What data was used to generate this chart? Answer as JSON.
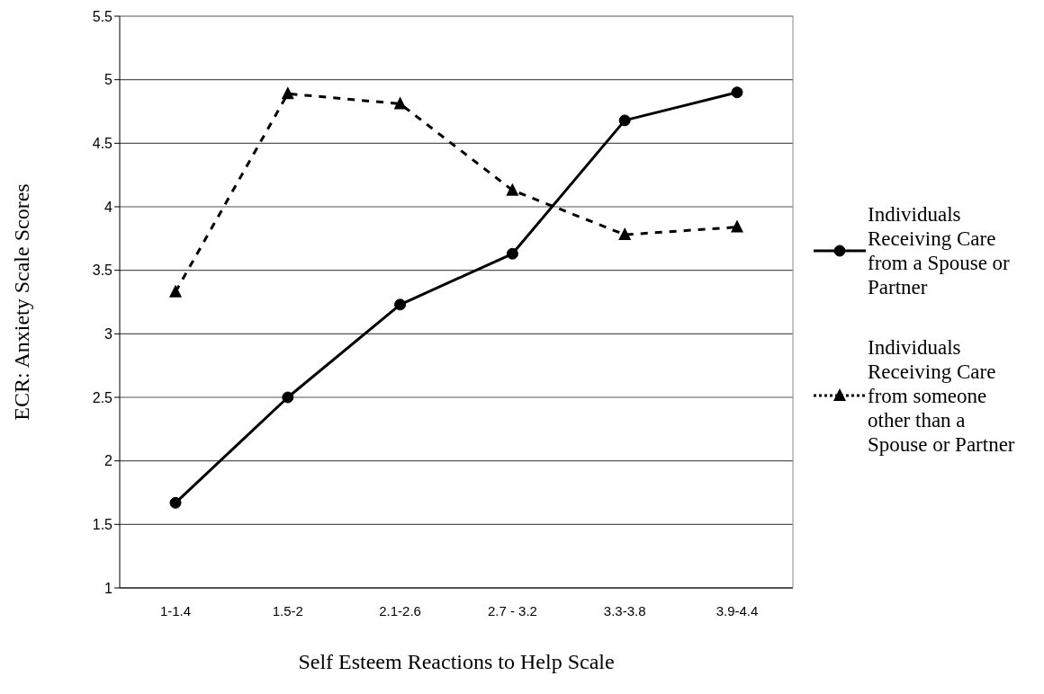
{
  "chart_data": {
    "type": "line",
    "xlabel": "Self Esteem Reactions to Help Scale",
    "ylabel": "ECR: Anxiety Scale Scores",
    "categories": [
      "1-1.4",
      "1.5-2",
      "2.1-2.6",
      "2.7 - 3.2",
      "3.3-3.8",
      "3.9-4.4"
    ],
    "series": [
      {
        "name": "Individuals Receiving Care from a Spouse or Partner",
        "color": "#000000",
        "values": [
          1.67,
          2.5,
          3.23,
          3.63,
          4.68,
          4.9
        ],
        "marker": "circle",
        "line_style": "solid"
      },
      {
        "name": "Individuals Receiving Care from someone other than a Spouse or Partner",
        "color": "#000000",
        "values": [
          3.33,
          4.89,
          4.81,
          4.13,
          3.78,
          3.84
        ],
        "marker": "triangle",
        "line_style": "dashed"
      }
    ],
    "ylim": [
      1,
      5.5
    ],
    "yticks": [
      1,
      1.5,
      2,
      2.5,
      3,
      3.5,
      4,
      4.5,
      5,
      5.5
    ],
    "grid": "y",
    "legend": "right"
  }
}
